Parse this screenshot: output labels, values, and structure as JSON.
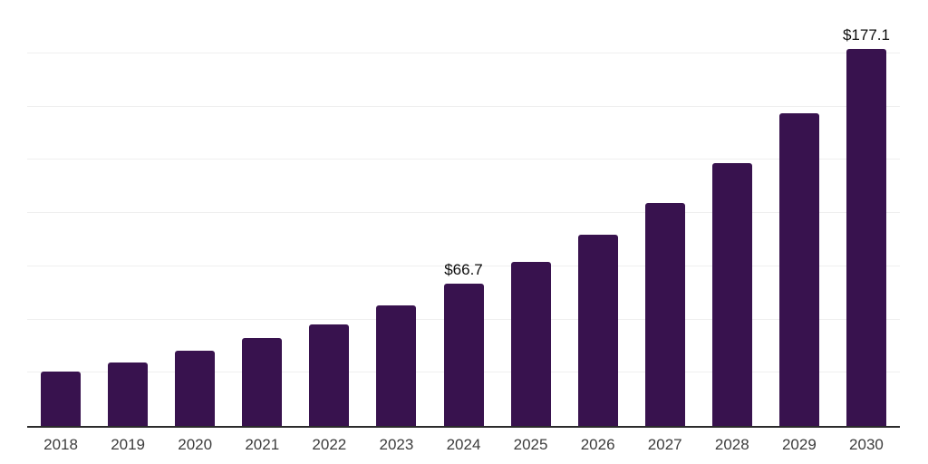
{
  "chart_data": {
    "type": "bar",
    "title": "",
    "xlabel": "",
    "ylabel": "",
    "categories": [
      "2018",
      "2019",
      "2020",
      "2021",
      "2022",
      "2023",
      "2024",
      "2025",
      "2026",
      "2027",
      "2028",
      "2029",
      "2030"
    ],
    "values": [
      25.5,
      29.8,
      35.4,
      41.4,
      47.5,
      56.5,
      66.7,
      76.9,
      89.7,
      104.5,
      123.3,
      147.0,
      177.1
    ],
    "bar_labels": [
      "",
      "",
      "",
      "",
      "",
      "",
      "$66.7",
      "",
      "",
      "",
      "",
      "",
      "$177.1"
    ],
    "ylim": [
      0,
      200
    ],
    "gridline_step": 25,
    "grid": "horizontal-only",
    "legend": "none",
    "y_axis_tick_labels_visible": false,
    "colors": {
      "bar": "#38124E",
      "axis": "#2b2b2b",
      "gridline": "#efefef",
      "tick_label": "#3c3c3c",
      "value_label": "#0b0b0b",
      "background": "#ffffff"
    }
  }
}
